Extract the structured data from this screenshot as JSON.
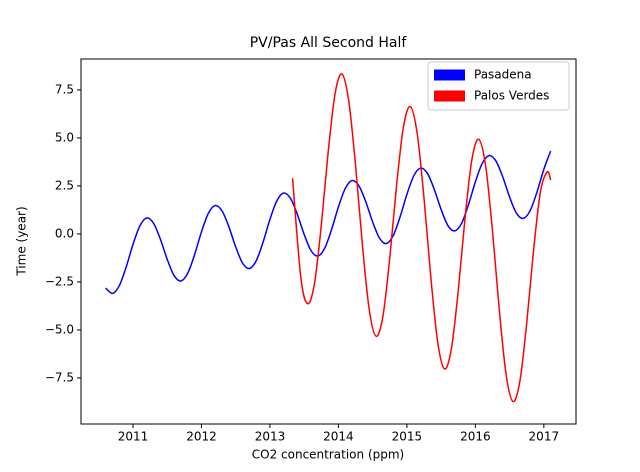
{
  "chart_data": {
    "type": "line",
    "title": "PV/Pas All Second Half",
    "xlabel": "CO2 concentration (ppm)",
    "ylabel": "Time (year)",
    "xlim": [
      2010.24,
      2017.47
    ],
    "ylim": [
      -9.9,
      9.11
    ],
    "xticks": [
      2011,
      2012,
      2013,
      2014,
      2015,
      2016,
      2017
    ],
    "yticks": [
      {
        "value": -7.5,
        "label": "−7.5"
      },
      {
        "value": -5,
        "label": "−5.0"
      },
      {
        "value": -2.5,
        "label": "−2.5"
      },
      {
        "value": 0,
        "label": "0.0"
      },
      2.5,
      {
        "value": 5,
        "label": "5.0"
      },
      7.5
    ],
    "legend": "upper right",
    "series": [
      {
        "name": "Pasadena",
        "color": "#0000ff",
        "x": [
          2010.6,
          2010.7,
          2010.8,
          2010.9,
          2011.0,
          2011.1,
          2011.2,
          2011.3,
          2011.4,
          2011.5,
          2011.6,
          2011.7,
          2011.8,
          2011.9,
          2012.0,
          2012.1,
          2012.2,
          2012.3,
          2012.4,
          2012.5,
          2012.6,
          2012.7,
          2012.8,
          2012.9,
          2013.0,
          2013.1,
          2013.2,
          2013.3,
          2013.4,
          2013.5,
          2013.6,
          2013.7,
          2013.8,
          2013.9,
          2014.0,
          2014.1,
          2014.2,
          2014.3,
          2014.4,
          2014.5,
          2014.6,
          2014.7,
          2014.8,
          2014.9,
          2015.0,
          2015.1,
          2015.2,
          2015.3,
          2015.4,
          2015.5,
          2015.6,
          2015.7,
          2015.8,
          2015.9,
          2016.0,
          2016.1,
          2016.2,
          2016.3,
          2016.4,
          2016.5,
          2016.6,
          2016.7,
          2016.8,
          2016.9,
          2017.0,
          2017.1
        ],
        "values": [
          -2.82,
          -3.1,
          -2.69,
          -1.72,
          -0.54,
          0.42,
          0.83,
          0.55,
          -0.28,
          -1.33,
          -2.17,
          -2.45,
          -2.04,
          -1.07,
          0.11,
          1.07,
          1.48,
          1.2,
          0.37,
          -0.68,
          -1.52,
          -1.8,
          -1.39,
          -0.42,
          0.76,
          1.72,
          2.13,
          1.85,
          1.02,
          -0.03,
          -0.87,
          -1.15,
          -0.74,
          0.23,
          1.41,
          2.37,
          2.78,
          2.5,
          1.67,
          0.62,
          -0.22,
          -0.5,
          -0.09,
          0.88,
          2.06,
          3.02,
          3.43,
          3.15,
          2.32,
          1.27,
          0.43,
          0.16,
          0.56,
          1.53,
          2.71,
          3.67,
          4.08,
          3.8,
          2.97,
          1.92,
          1.08,
          0.81,
          1.21,
          2.18,
          3.36,
          4.32
        ]
      },
      {
        "name": "Palos Verdes",
        "color": "#ff0000",
        "x": [
          2013.33,
          2013.45,
          2013.55,
          2013.65,
          2013.75,
          2013.85,
          2013.95,
          2014.05,
          2014.15,
          2014.25,
          2014.35,
          2014.45,
          2014.55,
          2014.65,
          2014.75,
          2014.85,
          2014.95,
          2015.05,
          2015.15,
          2015.25,
          2015.35,
          2015.45,
          2015.55,
          2015.65,
          2015.75,
          2015.85,
          2015.95,
          2016.05,
          2016.15,
          2016.25,
          2016.35,
          2016.45,
          2016.55,
          2016.65,
          2016.75,
          2016.85,
          2016.95,
          2017.05,
          2017.1
        ],
        "values": [
          2.9,
          -2.24,
          -3.63,
          -2.58,
          0.46,
          4.25,
          7.28,
          8.33,
          6.94,
          3.57,
          -0.57,
          -3.94,
          -5.33,
          -4.28,
          -1.25,
          2.55,
          5.58,
          6.63,
          5.24,
          1.87,
          -2.27,
          -5.64,
          -7.03,
          -5.98,
          -2.95,
          0.85,
          3.88,
          4.93,
          3.54,
          0.17,
          -3.97,
          -7.34,
          -8.73,
          -7.68,
          -4.65,
          -0.86,
          2.18,
          3.23,
          2.8
        ]
      }
    ]
  }
}
